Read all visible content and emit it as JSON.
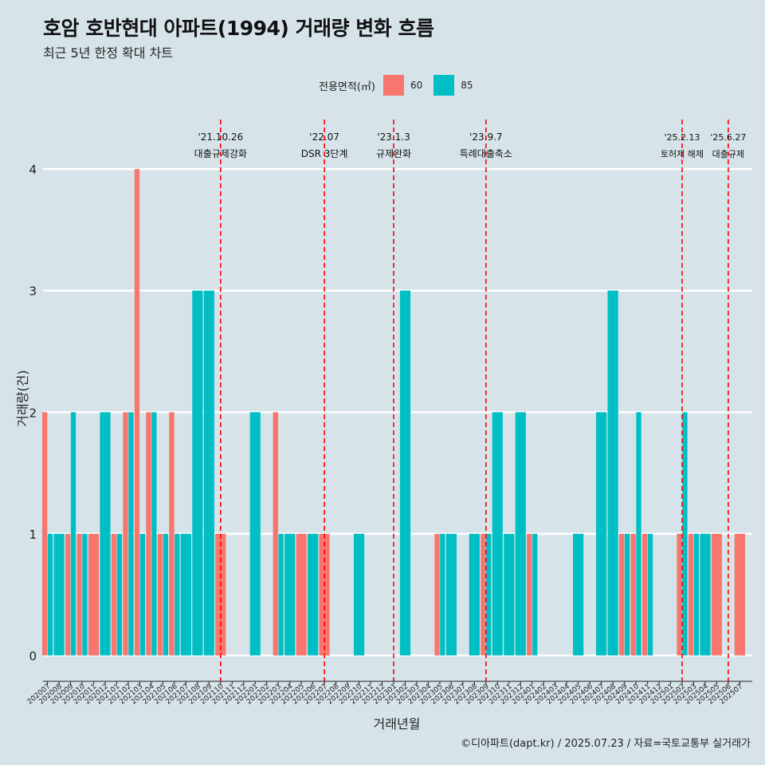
{
  "title": "호암 호반현대 아파트(1994) 거래량 변화 흐름",
  "subtitle": "최근 5년 한정 확대 차트",
  "caption": "©디아파트(dapt.kr) / 2025.07.23 / 자료=국토교통부 실거래가",
  "legend": {
    "title": "전용면적(㎡)",
    "items": [
      {
        "label": "60",
        "color": "#f8766d"
      },
      {
        "label": "85",
        "color": "#00bfc4"
      }
    ]
  },
  "chart_data": {
    "type": "bar",
    "xlabel": "거래년월",
    "ylabel": "거래량(건)",
    "ylim": [
      0,
      4
    ],
    "yticks": [
      0,
      1,
      2,
      3,
      4
    ],
    "categories": [
      "202007",
      "202008",
      "202009",
      "202010",
      "202011",
      "202012",
      "202101",
      "202102",
      "202103",
      "202104",
      "202105",
      "202106",
      "202107",
      "202108",
      "202109",
      "202110",
      "202111",
      "202112",
      "202201",
      "202202",
      "202203",
      "202204",
      "202205",
      "202206",
      "202207",
      "202208",
      "202209",
      "202210",
      "202211",
      "202212",
      "202301",
      "202302",
      "202303",
      "202304",
      "202305",
      "202306",
      "202307",
      "202308",
      "202309",
      "202310",
      "202311",
      "202312",
      "202401",
      "202402",
      "202403",
      "202404",
      "202405",
      "202406",
      "202407",
      "202408",
      "202409",
      "202410",
      "202411",
      "202412",
      "202501",
      "202502",
      "202503",
      "202504",
      "202505",
      "202506",
      "202507"
    ],
    "series": [
      {
        "name": "60",
        "color": "#f8766d",
        "values": [
          2,
          0,
          1,
          1,
          1,
          0,
          1,
          2,
          4,
          2,
          1,
          2,
          0,
          0,
          0,
          1,
          0,
          0,
          0,
          0,
          2,
          0,
          1,
          0,
          1,
          0,
          0,
          0,
          0,
          0,
          0,
          0,
          0,
          0,
          1,
          0,
          0,
          0,
          1,
          0,
          0,
          0,
          1,
          0,
          0,
          0,
          0,
          0,
          0,
          0,
          1,
          1,
          1,
          0,
          0,
          1,
          1,
          0,
          1,
          0,
          1
        ]
      },
      {
        "name": "85",
        "color": "#00bfc4",
        "values": [
          1,
          1,
          2,
          1,
          0,
          2,
          1,
          2,
          1,
          2,
          1,
          1,
          1,
          3,
          3,
          0,
          0,
          0,
          2,
          0,
          1,
          1,
          0,
          1,
          0,
          0,
          0,
          1,
          0,
          0,
          0,
          3,
          0,
          0,
          1,
          1,
          0,
          1,
          1,
          2,
          1,
          2,
          1,
          0,
          0,
          0,
          1,
          0,
          2,
          3,
          1,
          2,
          1,
          0,
          0,
          2,
          1,
          1,
          0,
          0,
          0
        ]
      }
    ],
    "annotations": [
      {
        "at": "202110",
        "date": "'21.10.26",
        "label": "대출규제강화"
      },
      {
        "at": "202207",
        "date": "'22.07",
        "label": "DSR 3단계"
      },
      {
        "at": "202301",
        "date": "'23.1.3",
        "label": "규제완화"
      },
      {
        "at": "202309",
        "date": "'23.9.7",
        "label": "특례대출축소"
      },
      {
        "at": "202502",
        "date": "'25.2.13",
        "label": "토허제 해제"
      },
      {
        "at": "202506",
        "date": "'25.6.27",
        "label": "대출규제"
      }
    ]
  }
}
